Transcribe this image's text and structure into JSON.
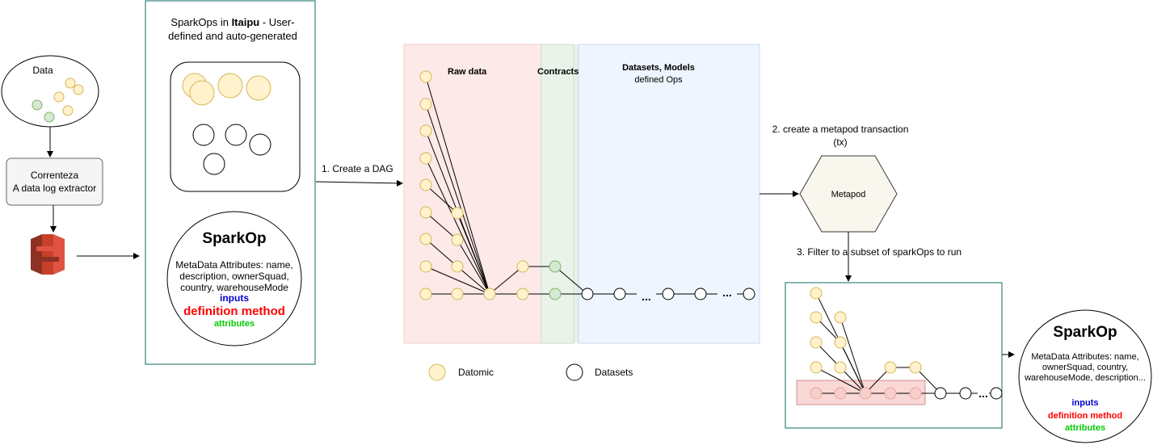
{
  "source": {
    "title": "Data"
  },
  "extractor": {
    "line1": "Correnteza",
    "line2": "A data log extractor"
  },
  "sparkops_panel": {
    "title_prefix": "SparkOps in ",
    "title_bold": "Itaipu",
    "title_suffix": " - User-defined and auto-generated"
  },
  "sparkop_card": {
    "title": "SparkOp",
    "meta": "MetaData Attributes: name, description, ownerSquad, country, warehouseMode",
    "inputs": "inputs",
    "definition": "definition method",
    "attributes": "attributes"
  },
  "steps": {
    "step1": "1. Create a DAG",
    "step2_line1": "2. create a metapod transaction",
    "step2_line2": "(tx)",
    "step3": "3. Filter to a subset of sparkOps to run"
  },
  "dag": {
    "raw_data": "Raw data",
    "contracts": "Contracts",
    "datasets_title": "Datasets, Models",
    "datasets_sub": "defined Ops",
    "ellipsis": "..."
  },
  "legend": {
    "datomic": "Datomic",
    "datasets": "Datasets"
  },
  "metapod": {
    "label": "Metapod"
  },
  "sparkop_result": {
    "title": "SparkOp",
    "meta": "MetaData Attributes: name, ownerSquad, country, warehouseMode, description...",
    "inputs": "inputs",
    "definition": "definition method",
    "attributes": "attributes"
  },
  "colors": {
    "datomic_fill": "#fff2cc",
    "datomic_stroke": "#d6b656",
    "green_fill": "#d5e8d4",
    "green_stroke": "#82b366",
    "raw_zone": "#f8cecc",
    "contracts_zone": "#d5e8d4",
    "datasets_zone": "#dae8fc",
    "teal_border": "#0e6b5e",
    "inputs_color": "#0000cc",
    "definition_color": "#ff0000",
    "attributes_color": "#00cc00"
  }
}
